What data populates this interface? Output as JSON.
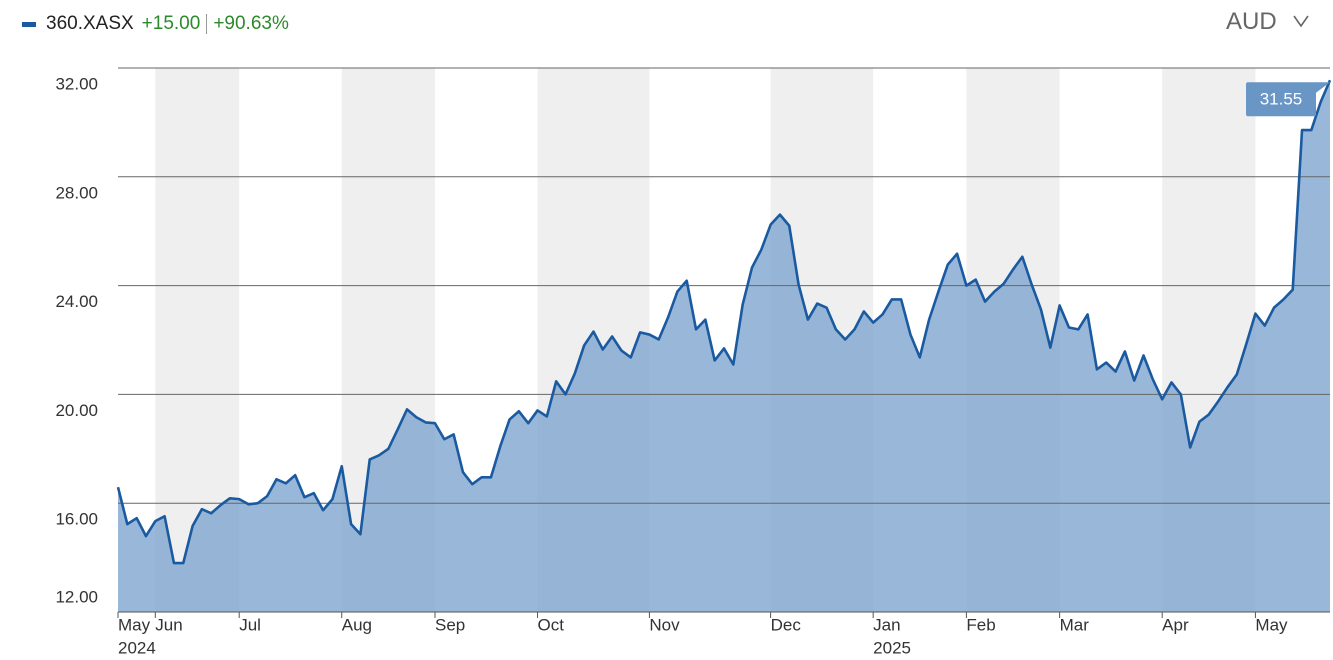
{
  "header": {
    "change": "+15.00",
    "change_percent": "+90.63%",
    "currency": "AUD"
  },
  "chart_data": {
    "type": "area",
    "series": [
      {
        "name": "360.XASX",
        "color": "#1a5aa0",
        "fill": "#7fa6d0",
        "values": [
          16.59,
          15.23,
          15.45,
          14.79,
          15.34,
          15.52,
          13.8,
          13.8,
          15.16,
          15.78,
          15.63,
          15.93,
          16.18,
          16.15,
          15.96,
          16.0,
          16.26,
          16.88,
          16.73,
          17.03,
          16.22,
          16.37,
          15.74,
          16.15,
          17.36,
          15.23,
          14.86,
          17.61,
          17.76,
          18.0,
          18.71,
          19.45,
          19.16,
          18.97,
          18.94,
          18.35,
          18.53,
          17.14,
          16.7,
          16.95,
          16.95,
          18.09,
          19.08,
          19.38,
          18.94,
          19.41,
          19.19,
          20.48,
          20.0,
          20.77,
          21.8,
          22.31,
          21.65,
          22.13,
          21.61,
          21.36,
          22.28,
          22.2,
          22.02,
          22.83,
          23.78,
          24.18,
          22.39,
          22.75,
          21.25,
          21.69,
          21.1,
          23.3,
          24.66,
          25.32,
          26.24,
          26.61,
          26.2,
          24.04,
          22.75,
          23.34,
          23.19,
          22.39,
          22.02,
          22.39,
          23.05,
          22.64,
          22.94,
          23.49,
          23.49,
          22.2,
          21.36,
          22.75,
          23.78,
          24.77,
          25.17,
          24.0,
          24.22,
          23.41,
          23.78,
          24.07,
          24.59,
          25.06,
          24.04,
          23.12,
          21.72,
          23.27,
          22.46,
          22.39,
          22.94,
          20.92,
          21.17,
          20.84,
          21.58,
          20.51,
          21.43,
          20.55,
          19.82,
          20.44,
          20.0,
          18.05,
          19.0,
          19.26,
          19.74,
          20.26,
          20.73,
          21.83,
          22.97,
          22.53,
          23.19,
          23.49,
          23.85,
          29.72,
          29.72,
          30.75,
          31.55
        ]
      }
    ],
    "categories": [
      "May",
      null,
      null,
      null,
      "Jun",
      null,
      null,
      null,
      null,
      null,
      null,
      null,
      null,
      "Jul",
      null,
      null,
      null,
      null,
      null,
      null,
      null,
      null,
      null,
      null,
      "Aug",
      null,
      null,
      null,
      null,
      null,
      null,
      null,
      null,
      null,
      "Sep",
      null,
      null,
      null,
      null,
      null,
      null,
      null,
      null,
      null,
      null,
      "Oct",
      null,
      null,
      null,
      null,
      null,
      null,
      null,
      null,
      null,
      null,
      null,
      "Nov",
      null,
      null,
      null,
      null,
      null,
      null,
      null,
      null,
      null,
      null,
      null,
      null,
      "Dec",
      null,
      null,
      null,
      null,
      null,
      null,
      null,
      null,
      null,
      null,
      "Jan",
      null,
      null,
      null,
      null,
      null,
      null,
      null,
      null,
      null,
      "Feb",
      null,
      null,
      null,
      null,
      null,
      null,
      null,
      null,
      null,
      "Mar",
      null,
      null,
      null,
      null,
      null,
      null,
      null,
      null,
      null,
      null,
      "Apr",
      null,
      null,
      null,
      null,
      null,
      null,
      null,
      null,
      null,
      "May",
      null,
      null,
      null,
      null,
      null,
      null,
      null,
      null
    ],
    "category_years": [
      "2024",
      null,
      null,
      null,
      null,
      null,
      null,
      null,
      null,
      null,
      null,
      null,
      null,
      null,
      null,
      null,
      null,
      null,
      null,
      null,
      null,
      null,
      null,
      null,
      null,
      null,
      null,
      null,
      null,
      null,
      null,
      null,
      null,
      null,
      null,
      null,
      null,
      null,
      null,
      null,
      null,
      null,
      null,
      null,
      null,
      null,
      null,
      null,
      null,
      null,
      null,
      null,
      null,
      null,
      null,
      null,
      null,
      null,
      null,
      null,
      null,
      null,
      null,
      null,
      null,
      null,
      null,
      null,
      null,
      null,
      null,
      null,
      null,
      null,
      null,
      null,
      null,
      null,
      null,
      null,
      null,
      "2025",
      null,
      null,
      null,
      null,
      null,
      null,
      null,
      null,
      null,
      null,
      null,
      null,
      null,
      null,
      null,
      null,
      null,
      null,
      null,
      null,
      null,
      null,
      null,
      null,
      null,
      null,
      null,
      null,
      null,
      null,
      null,
      null,
      null,
      null,
      null,
      null,
      null,
      null,
      null,
      null,
      null,
      null,
      null,
      null,
      null,
      null,
      null,
      null,
      null,
      null
    ],
    "ylim": [
      12,
      32
    ],
    "yticks": [
      {
        "value": 12,
        "label": "12.00"
      },
      {
        "value": 16,
        "label": "16.00"
      },
      {
        "value": 20,
        "label": "20.00"
      },
      {
        "value": 24,
        "label": "24.00"
      },
      {
        "value": 28,
        "label": "28.00"
      },
      {
        "value": 32,
        "label": "32.00"
      }
    ],
    "grid": true,
    "band_color": "#efefef"
  }
}
